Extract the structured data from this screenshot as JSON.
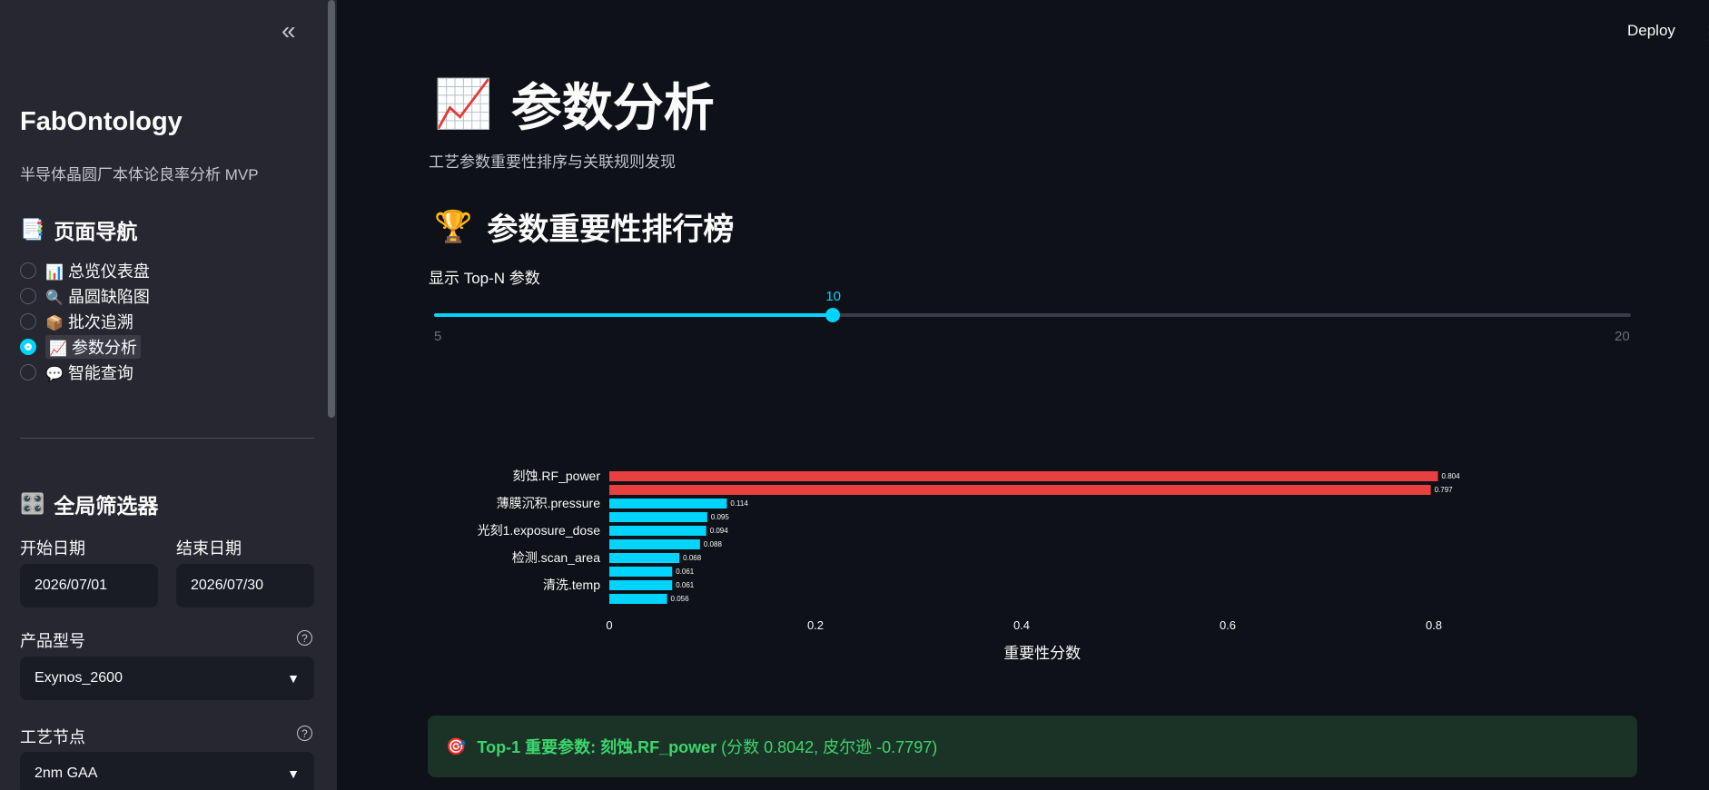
{
  "sidebar": {
    "collapse_icon": "«",
    "brand": "FabOntology",
    "subtitle": "半导体晶圆厂本体论良率分析 MVP",
    "nav_heading": "页面导航",
    "nav_heading_icon": "📑",
    "nav_items": [
      {
        "icon": "📊",
        "label": "总览仪表盘"
      },
      {
        "icon": "🔍",
        "label": "晶圆缺陷图"
      },
      {
        "icon": "📦",
        "label": "批次追溯"
      },
      {
        "icon": "📈",
        "label": "参数分析"
      },
      {
        "icon": "💬",
        "label": "智能查询"
      }
    ],
    "selected_nav": 3,
    "filter_heading": "全局筛选器",
    "filter_heading_icon": "🎛️",
    "start_date_label": "开始日期",
    "start_date": "2026/07/01",
    "end_date_label": "结束日期",
    "end_date": "2026/07/30",
    "product_label": "产品型号",
    "product_value": "Exynos_2600",
    "node_label": "工艺节点",
    "node_value": "2nm GAA"
  },
  "header": {
    "deploy": "Deploy",
    "more_icon": "⋮"
  },
  "main": {
    "title_icon": "📈",
    "title": "参数分析",
    "description": "工艺参数重要性排序与关联规则发现",
    "section_icon": "🏆",
    "section_title": "参数重要性排行榜",
    "slider_label": "显示 Top-N 参数",
    "slider_value": "10",
    "slider_min": "5",
    "slider_max": "20",
    "callout_icon": "🎯",
    "callout_bold": "Top-1 重要参数: 刻蚀.RF_power",
    "callout_rest": "(分数 0.8042, 皮尔逊 -0.7797)"
  },
  "chart_data": {
    "type": "bar",
    "orientation": "horizontal",
    "xlabel": "重要性分数",
    "xlim": [
      0,
      0.85
    ],
    "xticks": [
      "0",
      "0.2",
      "0.4",
      "0.6",
      "0.8"
    ],
    "bars": [
      {
        "label": "刻蚀.RF_power",
        "value": 0.804,
        "text": "0.804",
        "color": "#e8403f"
      },
      {
        "label": "",
        "value": 0.797,
        "text": "0.797",
        "color": "#e8403f"
      },
      {
        "label": "薄膜沉积.pressure",
        "value": 0.114,
        "text": "0.114",
        "color": "#00d4ff"
      },
      {
        "label": "",
        "value": 0.095,
        "text": "0.095",
        "color": "#00d4ff"
      },
      {
        "label": "光刻1.exposure_dose",
        "value": 0.094,
        "text": "0.094",
        "color": "#00d4ff"
      },
      {
        "label": "",
        "value": 0.088,
        "text": "0.088",
        "color": "#00d4ff"
      },
      {
        "label": "检测.scan_area",
        "value": 0.068,
        "text": "0.068",
        "color": "#00d4ff"
      },
      {
        "label": "",
        "value": 0.061,
        "text": "0.061",
        "color": "#00d4ff"
      },
      {
        "label": "清洗.temp",
        "value": 0.061,
        "text": "0.061",
        "color": "#00d4ff"
      },
      {
        "label": "",
        "value": 0.056,
        "text": "0.056",
        "color": "#00d4ff"
      }
    ]
  }
}
